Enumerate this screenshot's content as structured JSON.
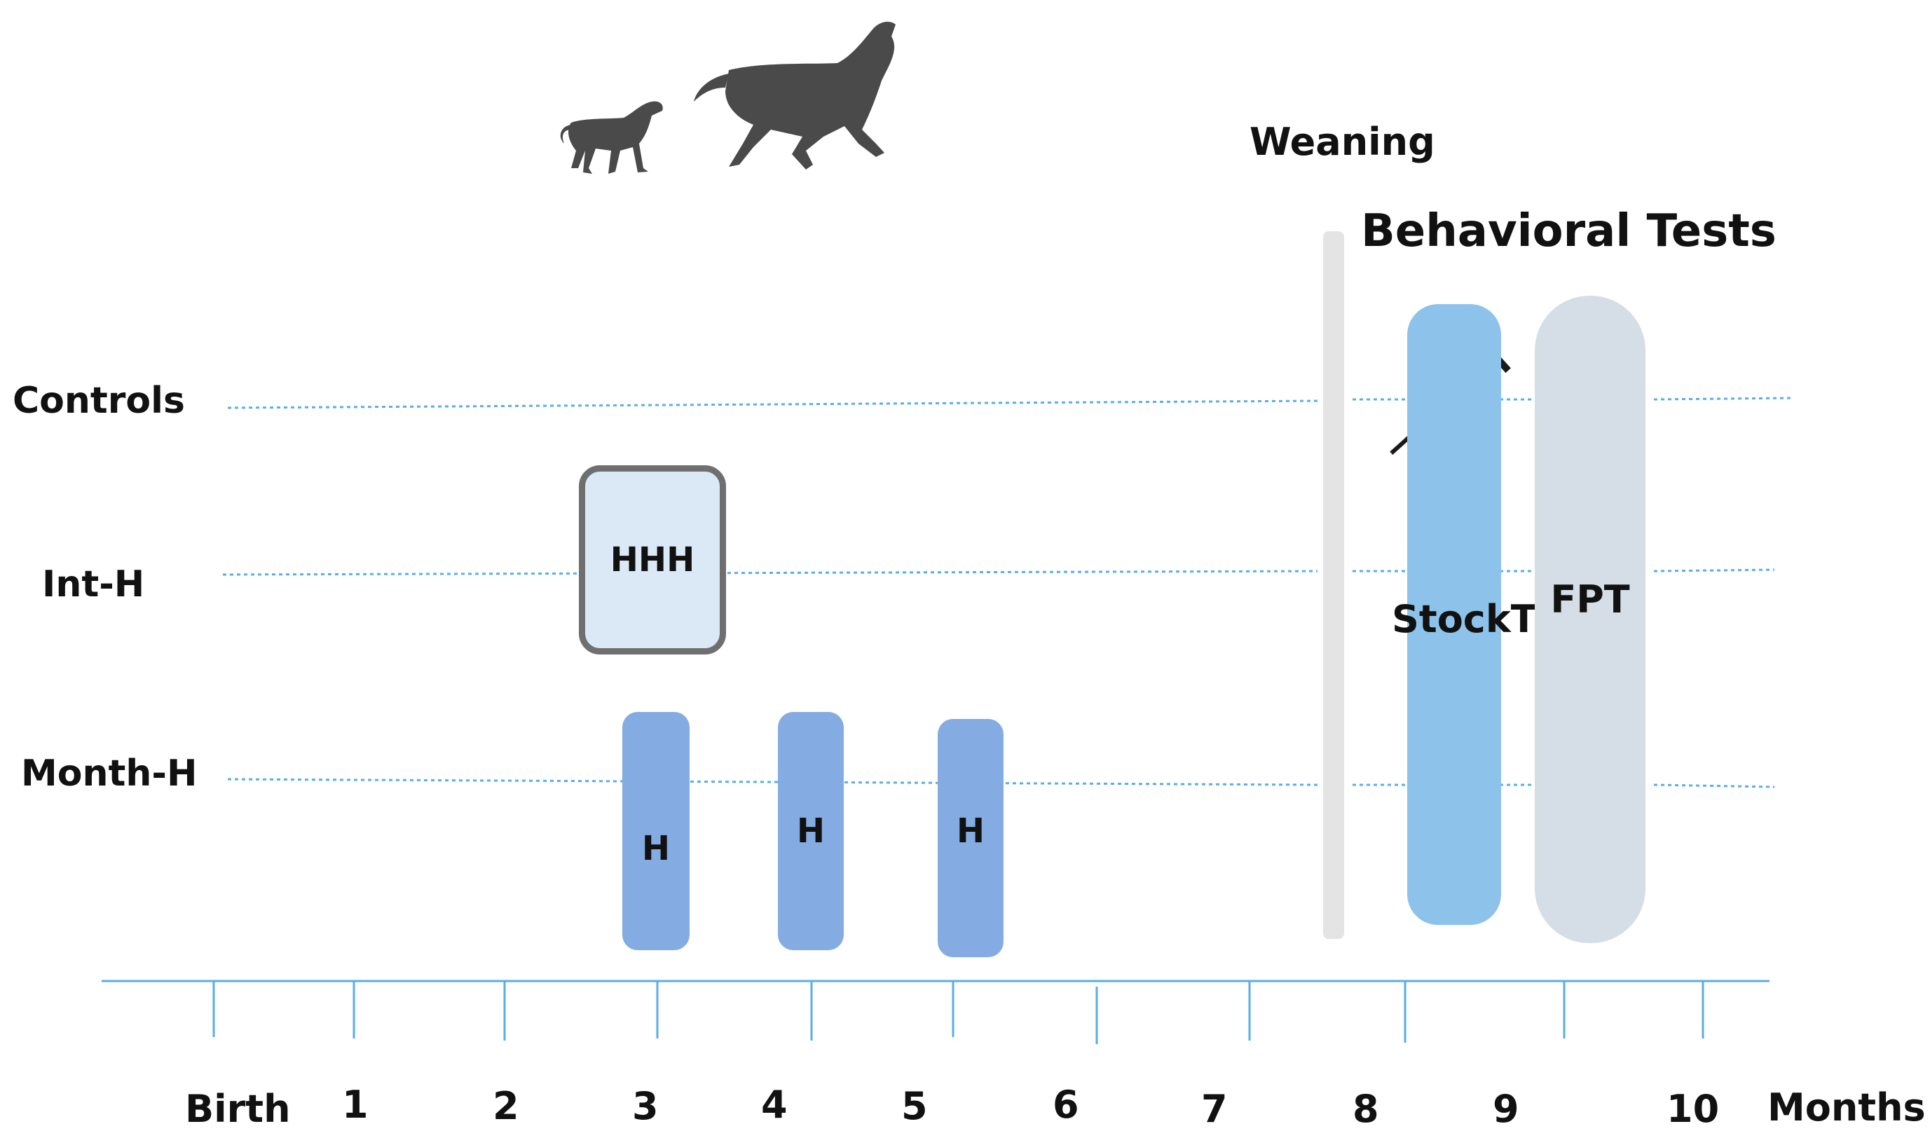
{
  "diagram": {
    "weaning_label": "Weaning",
    "section_title": "Behavioral Tests",
    "rows": {
      "controls": "Controls",
      "int_h": "Int-H",
      "month_h": "Month-H"
    },
    "interventions": {
      "hhh": "HHH",
      "h1": "H",
      "h2": "H",
      "h3": "H"
    },
    "tests": {
      "stock": "StockT",
      "fpt": "FPT"
    },
    "axis": {
      "ticks": [
        "Birth",
        "1",
        "2",
        "3",
        "4",
        "5",
        "6",
        "7",
        "8",
        "9",
        "10"
      ],
      "unit": "Months"
    },
    "icons": [
      "foal-icon",
      "mare-icon",
      "syringe-icon"
    ],
    "colors": {
      "timeline": "#5aaee6",
      "handling_box": "#84ace2",
      "hhh_box": "#dbe9f7",
      "stock_box": "#8dc3ea",
      "fpt_box": "#d5dde6",
      "weaning_bar": "#e4e4e4"
    }
  }
}
